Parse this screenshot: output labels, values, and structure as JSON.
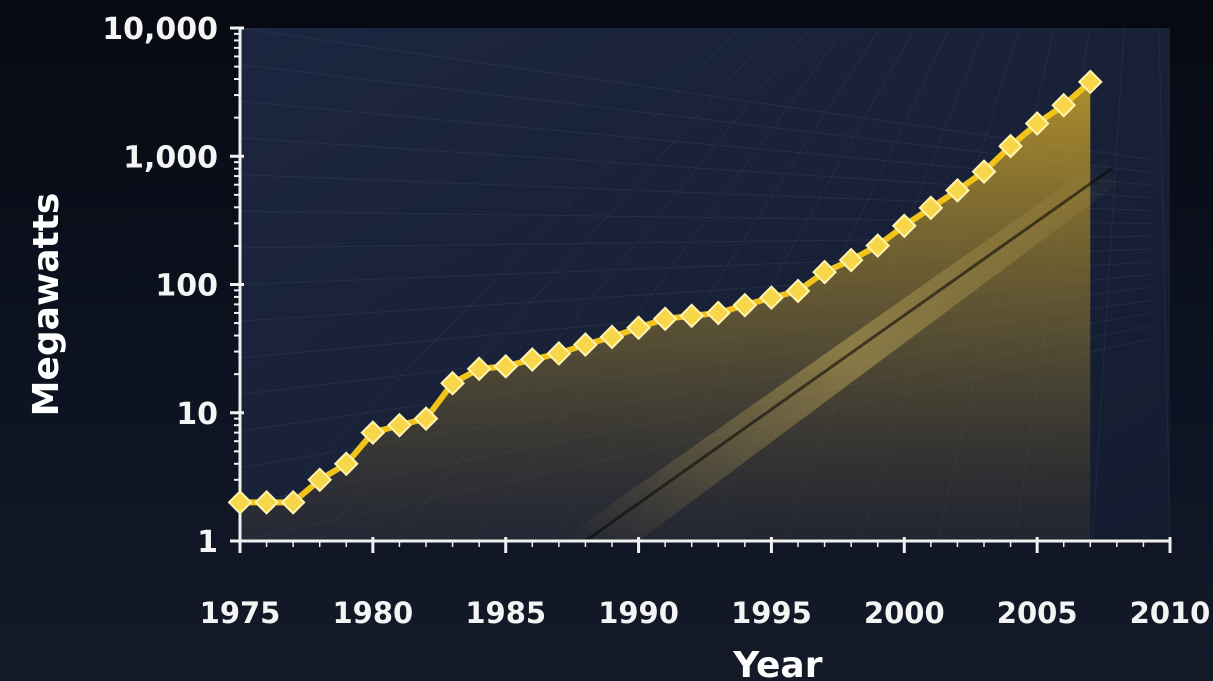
{
  "chart_data": {
    "type": "area",
    "xlabel": "Year",
    "ylabel": "Megawatts",
    "y_scale": "log",
    "xlim": [
      1975,
      2010
    ],
    "ylim": [
      1,
      10000
    ],
    "x_ticks": [
      "1975",
      "1980",
      "1985",
      "1990",
      "1995",
      "2000",
      "2005",
      "2010"
    ],
    "y_ticks": [
      "1",
      "10",
      "100",
      "1,000",
      "10,000"
    ],
    "x_tick_values": [
      1975,
      1980,
      1985,
      1990,
      1995,
      2000,
      2005,
      2010
    ],
    "y_tick_values": [
      1,
      10,
      100,
      1000,
      10000
    ],
    "grid": true,
    "colors": {
      "line": "#f2c41a",
      "marker": "#f7d64a",
      "marker_edge": "#fff4b0",
      "area_top": "#c9a32a",
      "area_bottom": "#2a2a34",
      "plot_bg": "#1a2236",
      "axis": "#f0f0f0",
      "text": "#f4f4f4"
    },
    "series": [
      {
        "x": [
          1975,
          1976,
          1977,
          1978,
          1979,
          1980,
          1981,
          1982,
          1983,
          1984,
          1985,
          1986,
          1987,
          1988,
          1989,
          1990,
          1991,
          1992,
          1993,
          1994,
          1995,
          1996,
          1997,
          1998,
          1999,
          2000,
          2001,
          2002,
          2003,
          2004,
          2005,
          2006,
          2007
        ],
        "values": [
          2,
          2,
          2,
          3,
          4,
          7,
          8,
          9,
          17,
          22,
          23,
          26,
          29,
          34,
          39,
          46,
          54,
          57,
          60,
          69,
          79,
          89,
          125,
          155,
          201,
          287,
          396,
          542,
          759,
          1200,
          1800,
          2500,
          3800
        ]
      }
    ]
  }
}
